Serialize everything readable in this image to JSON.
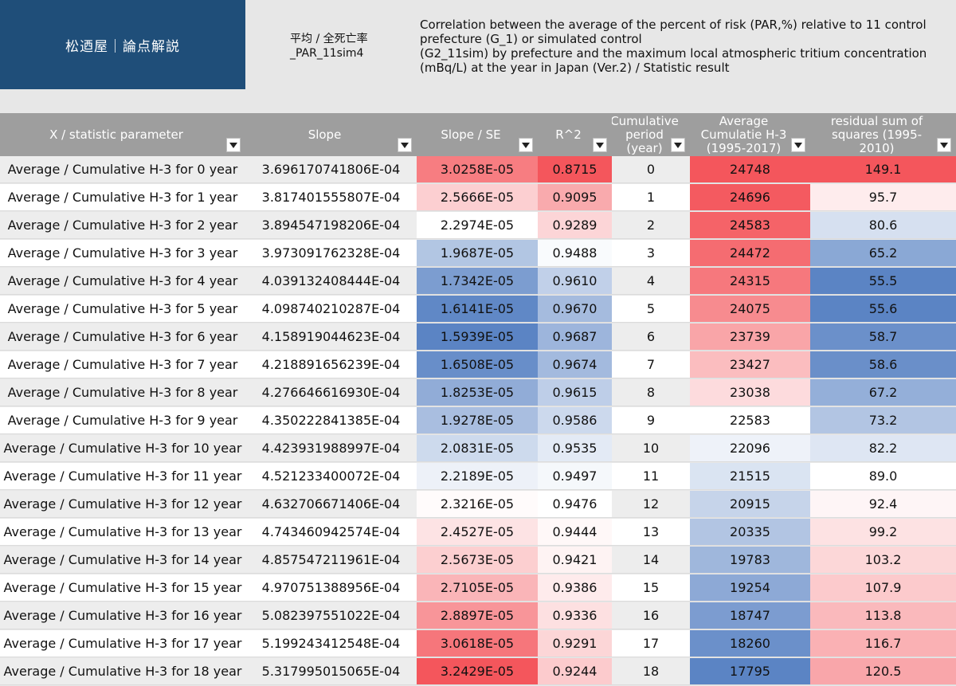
{
  "header": {
    "brand": "松迺屋｜論点解説",
    "sheet_name": "平均 / 全死亡率\n_PAR_11sim4",
    "description": "Correlation between the average of the percent of risk (PAR,%)  relative to 11 control prefecture (G_1) or simulated control\n (G2_11sim)  by prefecture and the maximum local atmospheric tritium concentration (mBq/L) at the year in Japan (Ver.2) / Statistic result"
  },
  "columns": [
    {
      "label": "X / statistic parameter"
    },
    {
      "label": "Slope"
    },
    {
      "label": "Slope /  SE"
    },
    {
      "label": "R^2"
    },
    {
      "label": "Cumulative period (year)"
    },
    {
      "label": "Average Cumulatie H-3 (1995-2017)"
    },
    {
      "label": "residual sum of squares  (1995-2010)"
    }
  ],
  "rows": [
    {
      "x": "Average / Cumulative H-3 for 0 year",
      "slope": "3.696170741806E-04",
      "se": "3.0258E-05",
      "r2": "0.8715",
      "period": "0",
      "h3": "24748",
      "rss": "149.1"
    },
    {
      "x": "Average / Cumulative H-3 for 1 year",
      "slope": "3.817401555807E-04",
      "se": "2.5666E-05",
      "r2": "0.9095",
      "period": "1",
      "h3": "24696",
      "rss": "95.7"
    },
    {
      "x": "Average / Cumulative H-3 for 2 year",
      "slope": "3.894547198206E-04",
      "se": "2.2974E-05",
      "r2": "0.9289",
      "period": "2",
      "h3": "24583",
      "rss": "80.6"
    },
    {
      "x": "Average / Cumulative H-3 for 3 year",
      "slope": "3.973091762328E-04",
      "se": "1.9687E-05",
      "r2": "0.9488",
      "period": "3",
      "h3": "24472",
      "rss": "65.2"
    },
    {
      "x": "Average / Cumulative H-3 for 4 year",
      "slope": "4.039132408444E-04",
      "se": "1.7342E-05",
      "r2": "0.9610",
      "period": "4",
      "h3": "24315",
      "rss": "55.5"
    },
    {
      "x": "Average / Cumulative H-3 for 5 year",
      "slope": "4.098740210287E-04",
      "se": "1.6141E-05",
      "r2": "0.9670",
      "period": "5",
      "h3": "24075",
      "rss": "55.6"
    },
    {
      "x": "Average / Cumulative H-3 for 6 year",
      "slope": "4.158919044623E-04",
      "se": "1.5939E-05",
      "r2": "0.9687",
      "period": "6",
      "h3": "23739",
      "rss": "58.7"
    },
    {
      "x": "Average / Cumulative H-3 for 7 year",
      "slope": "4.218891656239E-04",
      "se": "1.6508E-05",
      "r2": "0.9674",
      "period": "7",
      "h3": "23427",
      "rss": "58.6"
    },
    {
      "x": "Average / Cumulative H-3 for 8 year",
      "slope": "4.276646616930E-04",
      "se": "1.8253E-05",
      "r2": "0.9615",
      "period": "8",
      "h3": "23038",
      "rss": "67.2"
    },
    {
      "x": "Average / Cumulative H-3 for 9 year",
      "slope": "4.350222841385E-04",
      "se": "1.9278E-05",
      "r2": "0.9586",
      "period": "9",
      "h3": "22583",
      "rss": "73.2"
    },
    {
      "x": "Average / Cumulative H-3 for 10 year",
      "slope": "4.423931988997E-04",
      "se": "2.0831E-05",
      "r2": "0.9535",
      "period": "10",
      "h3": "22096",
      "rss": "82.2"
    },
    {
      "x": "Average / Cumulative H-3 for 11 year",
      "slope": "4.521233400072E-04",
      "se": "2.2189E-05",
      "r2": "0.9497",
      "period": "11",
      "h3": "21515",
      "rss": "89.0"
    },
    {
      "x": "Average / Cumulative H-3 for 12 year",
      "slope": "4.632706671406E-04",
      "se": "2.3216E-05",
      "r2": "0.9476",
      "period": "12",
      "h3": "20915",
      "rss": "92.4"
    },
    {
      "x": "Average / Cumulative H-3 for 13 year",
      "slope": "4.743460942574E-04",
      "se": "2.4527E-05",
      "r2": "0.9444",
      "period": "13",
      "h3": "20335",
      "rss": "99.2"
    },
    {
      "x": "Average / Cumulative H-3 for 14 year",
      "slope": "4.857547211961E-04",
      "se": "2.5673E-05",
      "r2": "0.9421",
      "period": "14",
      "h3": "19783",
      "rss": "103.2"
    },
    {
      "x": "Average / Cumulative H-3 for 15 year",
      "slope": "4.970751388956E-04",
      "se": "2.7105E-05",
      "r2": "0.9386",
      "period": "15",
      "h3": "19254",
      "rss": "107.9"
    },
    {
      "x": "Average / Cumulative H-3 for 16 year",
      "slope": "5.082397551022E-04",
      "se": "2.8897E-05",
      "r2": "0.9336",
      "period": "16",
      "h3": "18747",
      "rss": "113.8"
    },
    {
      "x": "Average / Cumulative H-3 for 17 year",
      "slope": "5.199243412548E-04",
      "se": "3.0618E-05",
      "r2": "0.9291",
      "period": "17",
      "h3": "18260",
      "rss": "116.7"
    },
    {
      "x": "Average / Cumulative H-3 for 18 year",
      "slope": "5.317995015065E-04",
      "se": "3.2429E-05",
      "r2": "0.9244",
      "period": "18",
      "h3": "17795",
      "rss": "120.5"
    }
  ],
  "colors": {
    "high": "#f4565c",
    "mid": "#ffffff",
    "low": "#5b84c4",
    "header_bg": "#9e9e9e",
    "banner_bg": "#1f4e79",
    "stripe": "#ededed"
  }
}
